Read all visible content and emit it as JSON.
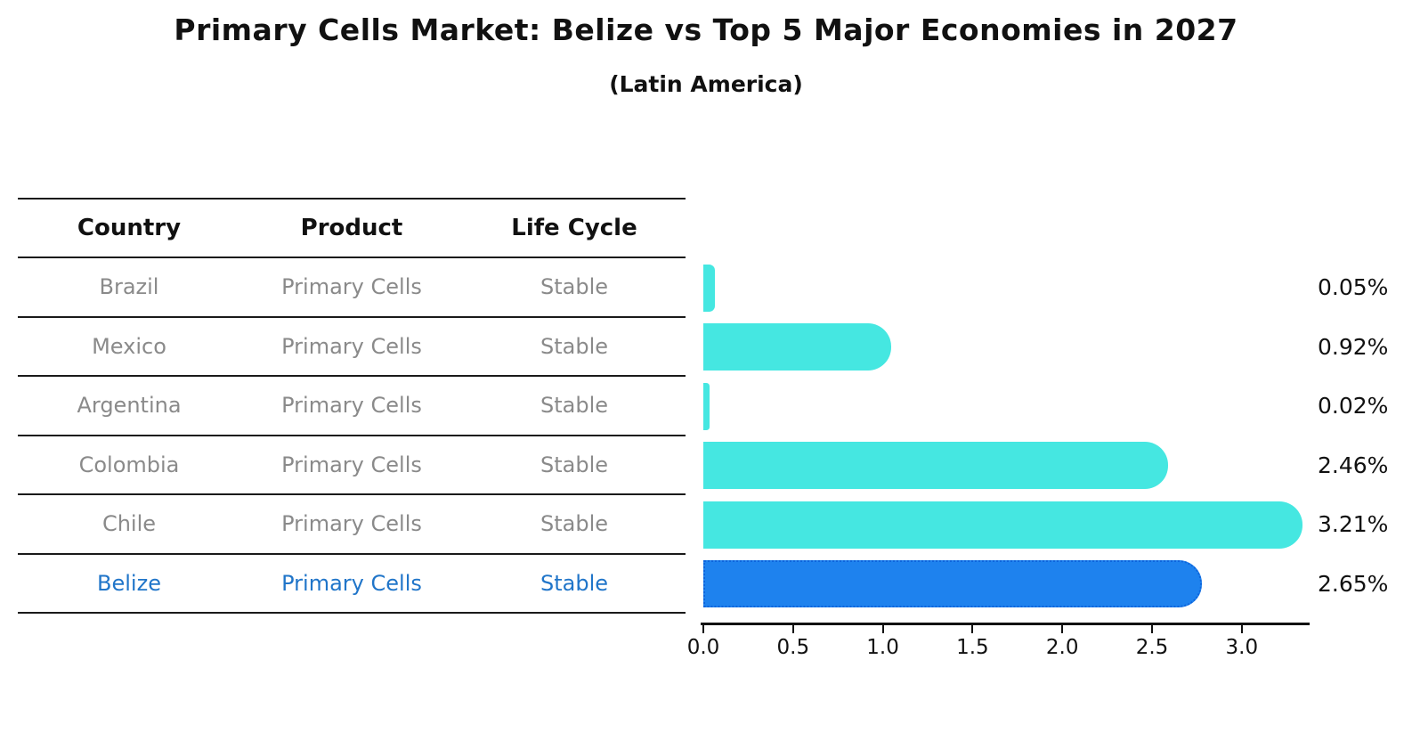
{
  "title": "Primary Cells Market: Belize vs Top 5 Major Economies in 2027",
  "subtitle": "(Latin America)",
  "table": {
    "columns": [
      "Country",
      "Product",
      "Life Cycle"
    ],
    "rows": [
      {
        "country": "Brazil",
        "product": "Primary Cells",
        "life_cycle": "Stable",
        "highlight": false
      },
      {
        "country": "Mexico",
        "product": "Primary Cells",
        "life_cycle": "Stable",
        "highlight": false
      },
      {
        "country": "Argentina",
        "product": "Primary Cells",
        "life_cycle": "Stable",
        "highlight": false
      },
      {
        "country": "Colombia",
        "product": "Primary Cells",
        "life_cycle": "Stable",
        "highlight": false
      },
      {
        "country": "Chile",
        "product": "Primary Cells",
        "life_cycle": "Stable",
        "highlight": false
      },
      {
        "country": "Belize",
        "product": "Primary Cells",
        "life_cycle": "Stable",
        "highlight": true
      }
    ]
  },
  "chart_data": {
    "type": "bar",
    "orientation": "horizontal",
    "title": "Primary Cells Market: Belize vs Top 5 Major Economies in 2027",
    "subtitle": "(Latin America)",
    "categories": [
      "Brazil",
      "Mexico",
      "Argentina",
      "Colombia",
      "Chile",
      "Belize"
    ],
    "values": [
      0.05,
      0.92,
      0.02,
      2.46,
      3.21,
      2.65
    ],
    "value_labels": [
      "0.05%",
      "0.92%",
      "0.02%",
      "2.46%",
      "3.21%",
      "2.65%"
    ],
    "highlight_index": 5,
    "x_ticks": [
      0.0,
      0.5,
      1.0,
      1.5,
      2.0,
      2.5,
      3.0
    ],
    "x_tick_labels": [
      "0.0",
      "0.5",
      "1.0",
      "1.5",
      "2.0",
      "2.5",
      "3.0"
    ],
    "xlim": [
      0,
      3.37
    ],
    "grid": false,
    "legend": false,
    "colors": {
      "bar": "#45e7e1",
      "highlight_bar": "#1e82ee",
      "highlight_border": "#0d64dc",
      "highlight_text": "#2075c9",
      "table_text": "#8a8a8a",
      "header_text": "#111111",
      "axis": "#111111"
    }
  }
}
